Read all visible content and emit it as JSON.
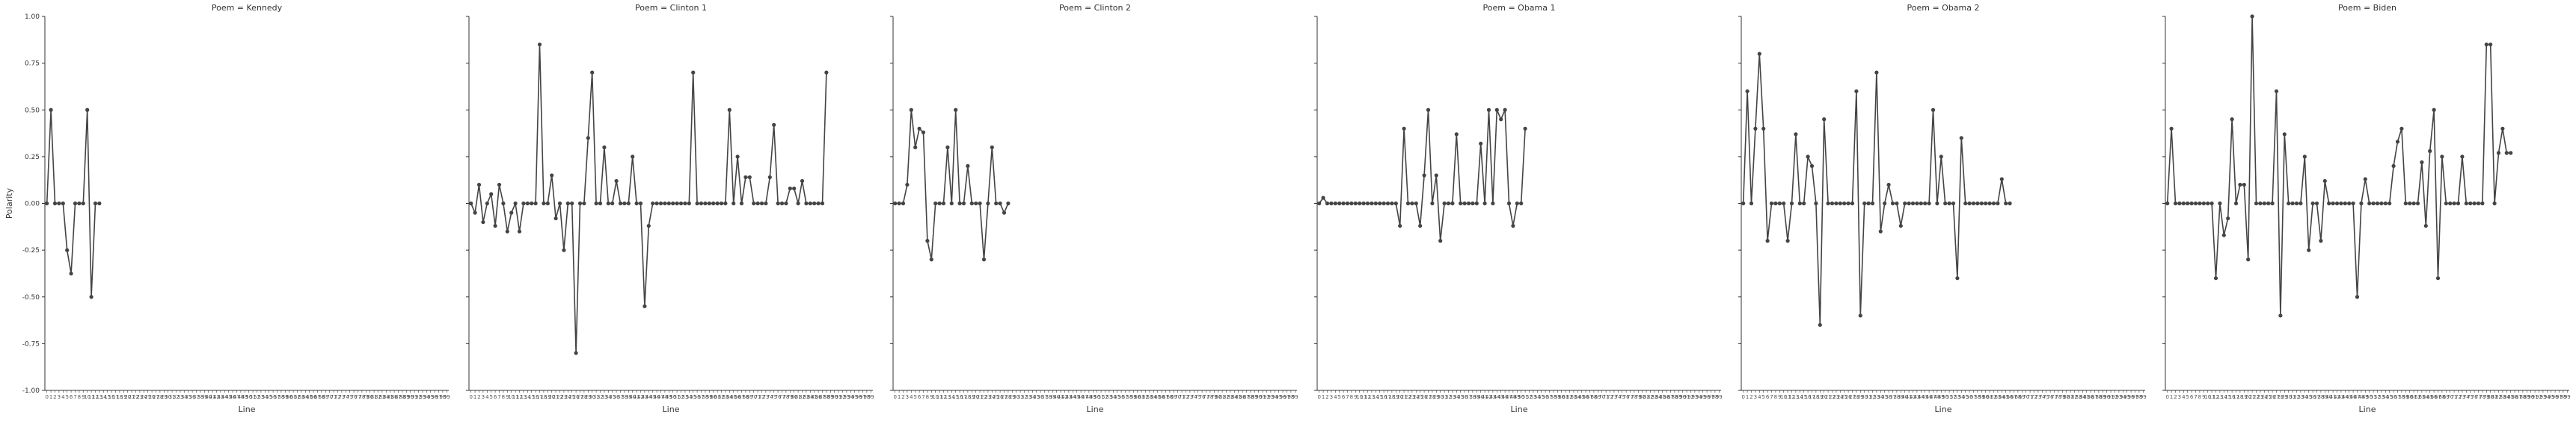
{
  "chart_data": {
    "type": "line",
    "xlabel": "Line",
    "ylabel": "Polarity",
    "ylim": [
      -1.0,
      1.0
    ],
    "yticks": [
      "-1.00",
      "-0.75",
      "-0.50",
      "-0.25",
      "0.00",
      "0.25",
      "0.50",
      "0.75",
      "1.00"
    ],
    "grid": false,
    "line_color": "#444444",
    "x_categories_shared": 100,
    "facets": [
      {
        "title": "Poem = Kennedy",
        "values": [
          0,
          0.5,
          0,
          0,
          0,
          -0.25,
          -0.375,
          0,
          0,
          0,
          0.5,
          -0.5,
          0,
          0
        ]
      },
      {
        "title": "Poem = Clinton 1",
        "values": [
          0,
          -0.05,
          0.1,
          -0.1,
          0,
          0.05,
          -0.12,
          0.1,
          0,
          -0.15,
          -0.05,
          0,
          -0.15,
          0,
          0,
          0,
          0,
          0.85,
          0,
          0,
          0.15,
          -0.08,
          0,
          -0.25,
          0,
          0,
          -0.8,
          0,
          0,
          0.35,
          0.7,
          0,
          0,
          0.3,
          0,
          0,
          0.12,
          0,
          0,
          0,
          0.25,
          0,
          0,
          -0.55,
          -0.12,
          0,
          0,
          0,
          0,
          0,
          0,
          0,
          0,
          0,
          0,
          0.7,
          0,
          0,
          0,
          0,
          0,
          0,
          0,
          0,
          0.5,
          0,
          0.25,
          0,
          0.14,
          0.14,
          0,
          0,
          0,
          0,
          0.14,
          0.42,
          0,
          0,
          0,
          0.08,
          0.08,
          0,
          0.12,
          0,
          0,
          0,
          0,
          0,
          0.7
        ]
      },
      {
        "title": "Poem = Clinton 2",
        "values": [
          0,
          0,
          0,
          0.1,
          0.5,
          0.3,
          0.4,
          0.38,
          -0.2,
          -0.3,
          0,
          0,
          0,
          0.3,
          0,
          0.5,
          0,
          0,
          0.2,
          0,
          0,
          0,
          -0.3,
          0,
          0.3,
          0,
          0,
          -0.05,
          0
        ]
      },
      {
        "title": "Poem = Obama 1",
        "values": [
          0,
          0.03,
          0,
          0,
          0,
          0,
          0,
          0,
          0,
          0,
          0,
          0,
          0,
          0,
          0,
          0,
          0,
          0,
          0,
          0,
          -0.12,
          0.4,
          0,
          0,
          0,
          -0.12,
          0.15,
          0.5,
          0,
          0.15,
          -0.2,
          0,
          0,
          0,
          0.37,
          0,
          0,
          0,
          0,
          0,
          0.32,
          0,
          0.5,
          0,
          0.5,
          0.45,
          0.5,
          0,
          -0.12,
          0,
          0,
          0.4
        ]
      },
      {
        "title": "Poem = Obama 2",
        "values": [
          0,
          0.6,
          0,
          0.4,
          0.8,
          0.4,
          -0.2,
          0,
          0,
          0,
          0,
          -0.2,
          0,
          0.37,
          0,
          0,
          0.25,
          0.2,
          0,
          -0.65,
          0.45,
          0,
          0,
          0,
          0,
          0,
          0,
          0,
          0.6,
          -0.6,
          0,
          0,
          0,
          0.7,
          -0.15,
          0,
          0.1,
          0,
          0,
          -0.12,
          0,
          0,
          0,
          0,
          0,
          0,
          0,
          0.5,
          0,
          0.25,
          0,
          0,
          0,
          -0.4,
          0.35,
          0,
          0,
          0,
          0,
          0,
          0,
          0,
          0,
          0,
          0.13,
          0,
          0
        ]
      },
      {
        "title": "Poem = Biden",
        "values": [
          0,
          0.4,
          0,
          0,
          0,
          0,
          0,
          0,
          0,
          0,
          0,
          0,
          -0.4,
          0,
          -0.17,
          -0.08,
          0.45,
          0,
          0.1,
          0.1,
          -0.3,
          1.0,
          0,
          0,
          0,
          0,
          0,
          0.6,
          -0.6,
          0.37,
          0,
          0,
          0,
          0,
          0.25,
          -0.25,
          0,
          0,
          -0.2,
          0.12,
          0,
          0,
          0,
          0,
          0,
          0,
          0,
          -0.5,
          0,
          0.13,
          0,
          0,
          0,
          0,
          0,
          0,
          0.2,
          0.33,
          0.4,
          0,
          0,
          0,
          0,
          0.22,
          -0.12,
          0.28,
          0.5,
          -0.4,
          0.25,
          0,
          0,
          0,
          0,
          0.25,
          0,
          0,
          0,
          0,
          0,
          0.85,
          0.85,
          0,
          0.27,
          0.4,
          0.27,
          0.27
        ]
      }
    ]
  }
}
